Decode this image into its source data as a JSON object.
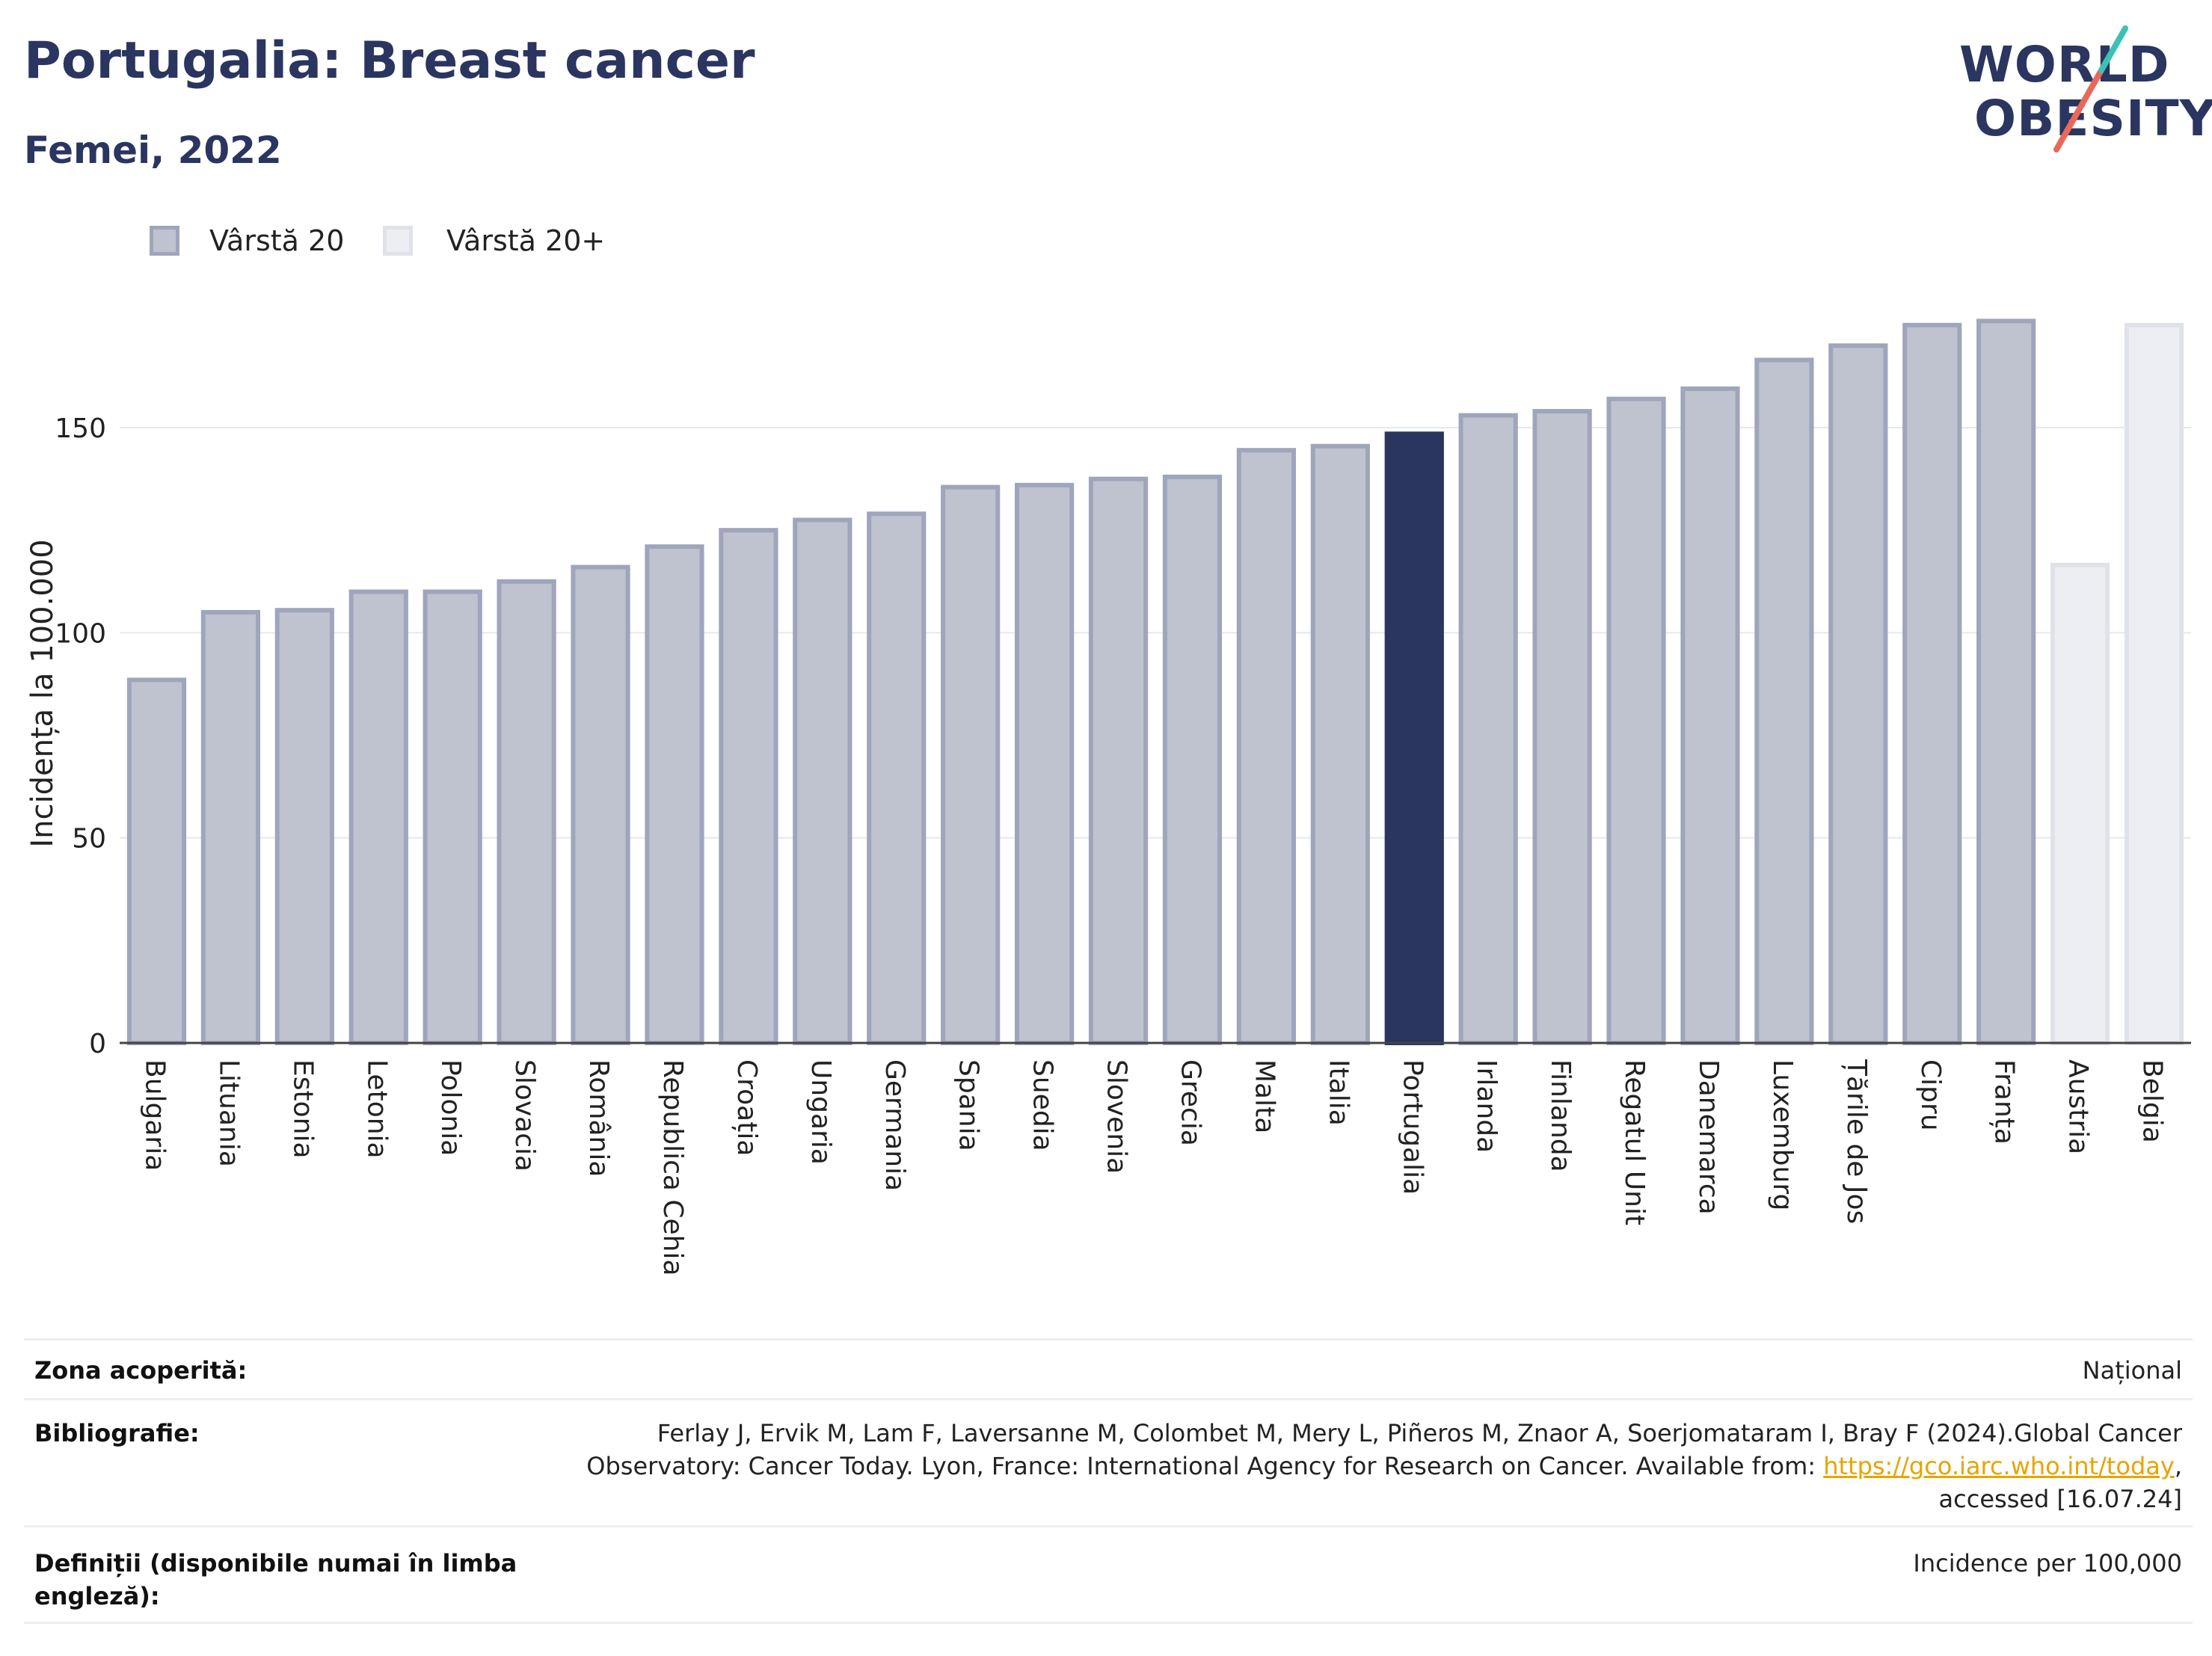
{
  "header": {
    "title": "Portugalia: Breast cancer",
    "subtitle": "Femei, 2022"
  },
  "logo": {
    "line1": "WORLD",
    "line2": "OBESITY"
  },
  "legend": [
    {
      "label": "Vârstă 20",
      "color": "#bfc2cf",
      "border": "#9fa5bb"
    },
    {
      "label": "Vârstă 20+",
      "color": "#eceef3",
      "border": "#e0e2ea"
    }
  ],
  "chart_data": {
    "type": "bar",
    "ylabel": "Incidența la 100.000",
    "xlabel": "",
    "ylim": [
      0,
      185
    ],
    "yticks": [
      0,
      50,
      100,
      150
    ],
    "grid": true,
    "legend_position": "top-left",
    "highlight": "Portugalia",
    "highlight_color": "#2a3560",
    "categories": [
      "Bulgaria",
      "Lituania",
      "Estonia",
      "Letonia",
      "Polonia",
      "Slovacia",
      "România",
      "Republica Cehia",
      "Croația",
      "Ungaria",
      "Germania",
      "Spania",
      "Suedia",
      "Slovenia",
      "Grecia",
      "Malta",
      "Italia",
      "Portugalia",
      "Irlanda",
      "Finlanda",
      "Regatul Unit",
      "Danemarca",
      "Luxemburg",
      "Țările de Jos",
      "Cipru",
      "Franța",
      "Austria",
      "Belgia"
    ],
    "series": [
      {
        "name": "Vârstă 20",
        "values": [
          88.5,
          105,
          105.5,
          110,
          110,
          112.5,
          116,
          121,
          125,
          127.5,
          129,
          135.5,
          136,
          137.5,
          138,
          144.5,
          145.5,
          148.5,
          153,
          154,
          157,
          159.5,
          166.5,
          170,
          175,
          176,
          null,
          null
        ]
      },
      {
        "name": "Vârstă 20+",
        "values": [
          null,
          null,
          null,
          null,
          null,
          null,
          null,
          null,
          null,
          null,
          null,
          null,
          null,
          null,
          null,
          null,
          null,
          null,
          null,
          null,
          null,
          null,
          null,
          null,
          null,
          null,
          116.5,
          175
        ]
      }
    ]
  },
  "info": {
    "coverage_label": "Zona acoperită:",
    "coverage_value": "Național",
    "bibliography_label": "Bibliografie:",
    "bibliography_line1": "Ferlay J, Ervik M, Lam F, Laversanne M, Colombet M, Mery L, Piñeros M, Znaor A, Soerjomataram I, Bray F (2024).Global Cancer",
    "bibliography_line2": "Observatory: Cancer Today. Lyon, France: International Agency for Research on Cancer. Available from: ",
    "bibliography_link": "https://gco.iarc.who.int/today",
    "bibliography_line2_end": ",",
    "bibliography_line3": "accessed [16.07.24]",
    "definitions_label_line1": "Definiții (disponibile numai în limba",
    "definitions_label_line2": "engleză):",
    "definitions_value": "Incidence per 100,000"
  }
}
